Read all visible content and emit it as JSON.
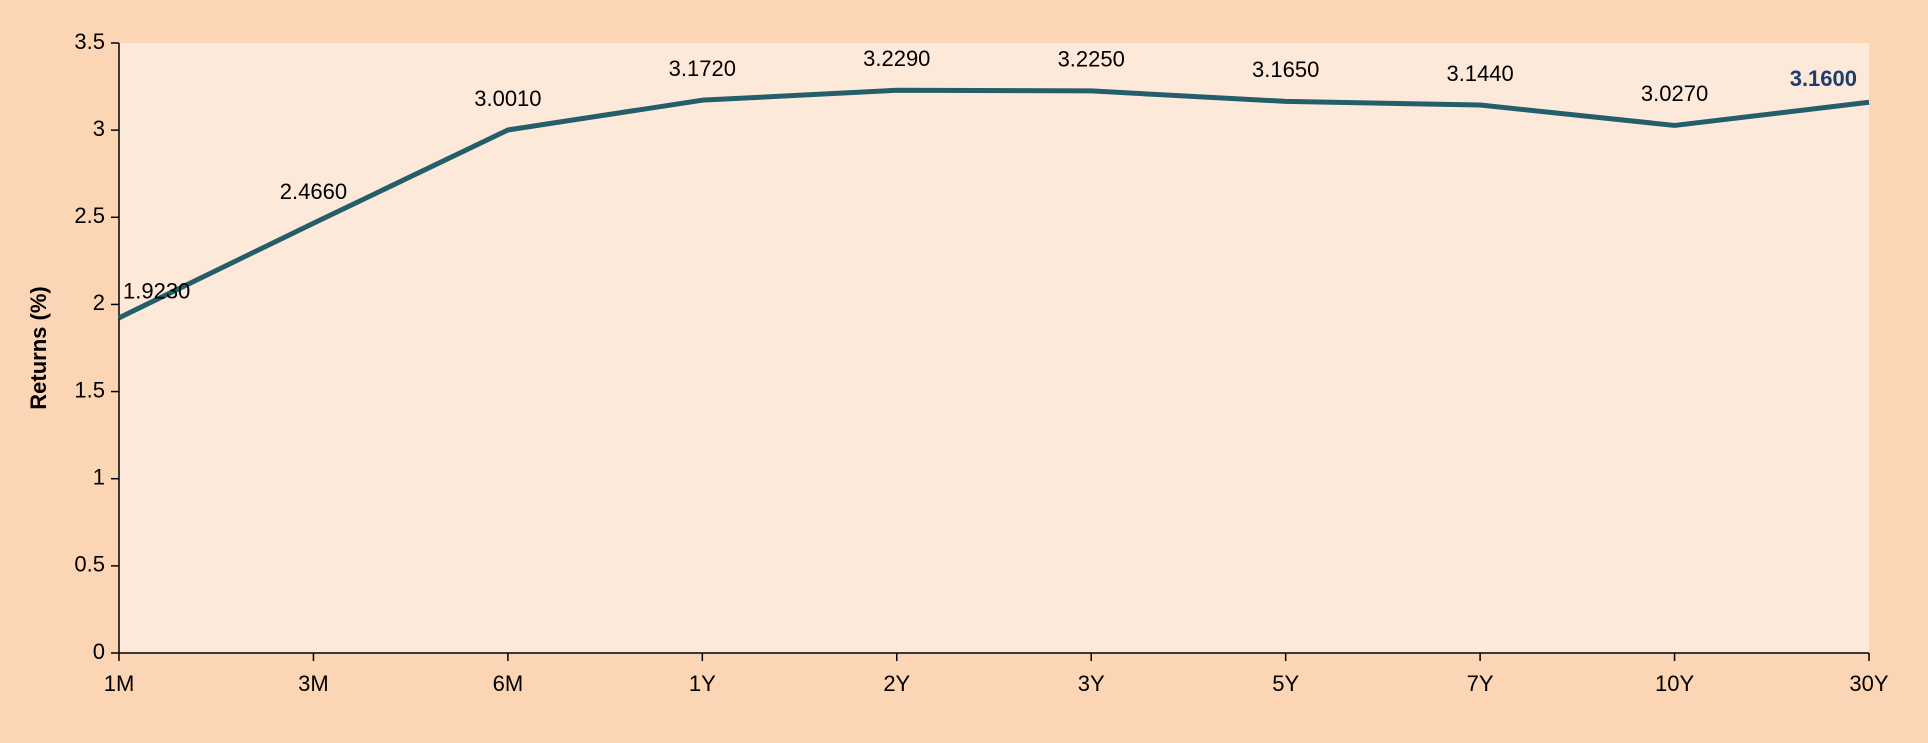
{
  "chart_data": {
    "type": "line",
    "y_label": "Returns (%)",
    "categories": [
      "1M",
      "3M",
      "6M",
      "1Y",
      "2Y",
      "3Y",
      "5Y",
      "7Y",
      "10Y",
      "30Y"
    ],
    "values": [
      1.923,
      2.466,
      3.001,
      3.172,
      3.229,
      3.225,
      3.165,
      3.144,
      3.027,
      3.16
    ],
    "value_labels": [
      "1.9230",
      "2.4660",
      "3.0010",
      "3.1720",
      "3.2290",
      "3.2250",
      "3.1650",
      "3.1440",
      "3.0270",
      "3.1600"
    ],
    "color": "#255e6b",
    "last_label_color": "#1f3c6e",
    "ylim": [
      0,
      3.5
    ],
    "yticks": [
      0,
      0.5,
      1,
      1.5,
      2,
      2.5,
      3,
      3.5
    ],
    "grid": false
  }
}
